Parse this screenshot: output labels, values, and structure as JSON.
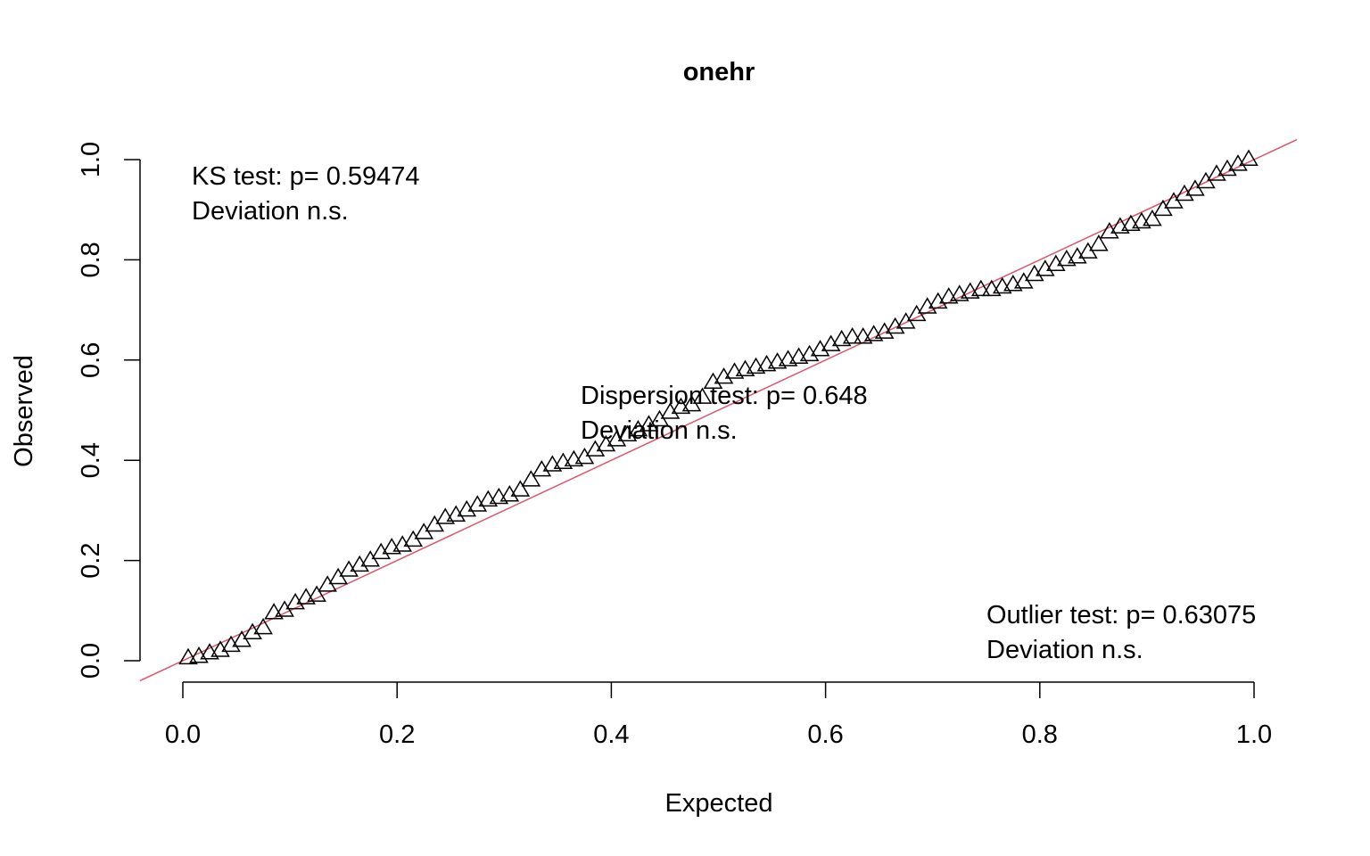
{
  "chart_data": {
    "type": "scatter",
    "title": "onehr",
    "xlabel": "Expected",
    "ylabel": "Observed",
    "xlim": [
      0,
      1
    ],
    "ylim": [
      0,
      1
    ],
    "xticks": [
      "0.0",
      "0.2",
      "0.4",
      "0.6",
      "0.8",
      "1.0"
    ],
    "yticks": [
      "0.0",
      "0.2",
      "0.4",
      "0.6",
      "0.8",
      "1.0"
    ],
    "grid": false,
    "legend": "none",
    "reference_line": {
      "intercept": 0,
      "slope": 1,
      "color": "#DF536B"
    },
    "point_marker": "triangle-open",
    "annotations": [
      {
        "line1": "KS test: p= 0.59474",
        "line2": "Deviation  n.s.",
        "position": "top-left"
      },
      {
        "line1": "Dispersion test: p= 0.648",
        "line2": "Deviation  n.s.",
        "position": "center"
      },
      {
        "line1": "Outlier test: p= 0.63075",
        "line2": "Deviation  n.s.",
        "position": "bottom-right"
      }
    ],
    "points": {
      "x": [
        0.005,
        0.015,
        0.025,
        0.035,
        0.045,
        0.055,
        0.065,
        0.075,
        0.085,
        0.095,
        0.105,
        0.115,
        0.125,
        0.135,
        0.145,
        0.155,
        0.165,
        0.175,
        0.185,
        0.195,
        0.205,
        0.215,
        0.225,
        0.235,
        0.245,
        0.255,
        0.265,
        0.275,
        0.285,
        0.295,
        0.305,
        0.315,
        0.325,
        0.335,
        0.345,
        0.355,
        0.365,
        0.375,
        0.385,
        0.395,
        0.405,
        0.415,
        0.425,
        0.435,
        0.445,
        0.455,
        0.465,
        0.475,
        0.485,
        0.495,
        0.505,
        0.515,
        0.525,
        0.535,
        0.545,
        0.555,
        0.565,
        0.575,
        0.585,
        0.595,
        0.605,
        0.615,
        0.625,
        0.635,
        0.645,
        0.655,
        0.665,
        0.675,
        0.685,
        0.695,
        0.705,
        0.715,
        0.725,
        0.735,
        0.745,
        0.755,
        0.765,
        0.775,
        0.785,
        0.795,
        0.805,
        0.815,
        0.825,
        0.835,
        0.845,
        0.855,
        0.865,
        0.875,
        0.885,
        0.895,
        0.905,
        0.915,
        0.925,
        0.935,
        0.945,
        0.955,
        0.965,
        0.975,
        0.985,
        0.995
      ],
      "y": [
        0.005,
        0.008,
        0.015,
        0.02,
        0.03,
        0.04,
        0.055,
        0.065,
        0.095,
        0.1,
        0.115,
        0.125,
        0.13,
        0.15,
        0.165,
        0.18,
        0.19,
        0.2,
        0.215,
        0.225,
        0.23,
        0.24,
        0.255,
        0.27,
        0.285,
        0.29,
        0.3,
        0.31,
        0.32,
        0.325,
        0.33,
        0.34,
        0.36,
        0.38,
        0.39,
        0.395,
        0.4,
        0.405,
        0.42,
        0.43,
        0.44,
        0.45,
        0.46,
        0.47,
        0.48,
        0.495,
        0.505,
        0.51,
        0.525,
        0.555,
        0.565,
        0.575,
        0.58,
        0.585,
        0.59,
        0.595,
        0.6,
        0.605,
        0.61,
        0.62,
        0.63,
        0.64,
        0.645,
        0.645,
        0.65,
        0.655,
        0.665,
        0.675,
        0.69,
        0.705,
        0.715,
        0.725,
        0.73,
        0.735,
        0.74,
        0.74,
        0.745,
        0.75,
        0.755,
        0.77,
        0.78,
        0.79,
        0.8,
        0.805,
        0.815,
        0.83,
        0.855,
        0.865,
        0.87,
        0.875,
        0.88,
        0.9,
        0.915,
        0.93,
        0.94,
        0.955,
        0.97,
        0.98,
        0.99,
        1.0
      ]
    }
  }
}
